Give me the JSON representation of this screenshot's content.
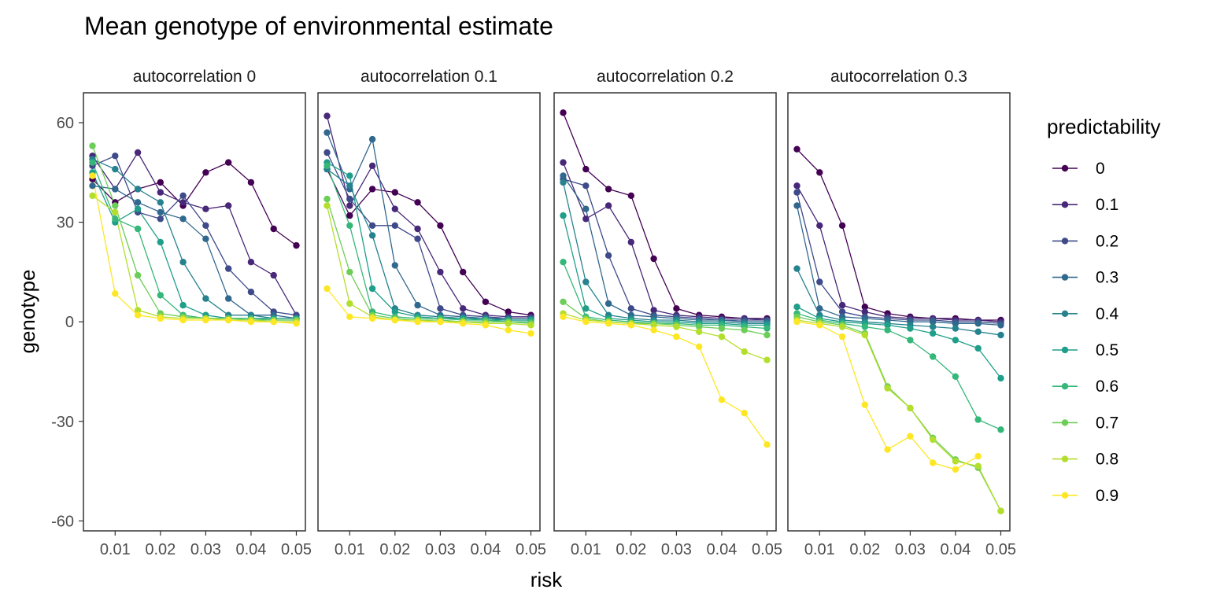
{
  "chart_data": {
    "type": "line",
    "title": "Mean genotype of environmental estimate",
    "xlabel": "risk",
    "ylabel": "genotype",
    "x": [
      0.005,
      0.01,
      0.015,
      0.02,
      0.025,
      0.03,
      0.035,
      0.04,
      0.045,
      0.05
    ],
    "x_ticks": [
      0.01,
      0.02,
      0.03,
      0.04,
      0.05
    ],
    "x_tick_labels": [
      "0.01",
      "0.02",
      "0.03",
      "0.04",
      "0.05"
    ],
    "xlim": [
      0.003,
      0.052
    ],
    "ylim": [
      -63,
      69
    ],
    "y_ticks": [
      60,
      30,
      0,
      -30,
      -60
    ],
    "y_tick_labels": [
      "60",
      "30",
      "0",
      "-30",
      "-60"
    ],
    "grid": false,
    "legend": {
      "title": "predictability",
      "position": "right",
      "labels": [
        "0",
        "0.1",
        "0.2",
        "0.3",
        "0.4",
        "0.5",
        "0.6",
        "0.7",
        "0.8",
        "0.9"
      ]
    },
    "series_colors": [
      "#440154",
      "#482878",
      "#3E4A89",
      "#31688E",
      "#26828E",
      "#1F9E89",
      "#35B779",
      "#6DCD59",
      "#B4DE2C",
      "#FDE725"
    ],
    "panels": [
      {
        "label": "autocorrelation 0",
        "series": [
          {
            "name": "0",
            "values": [
              43,
              36,
              40,
              42,
              35,
              45,
              48,
              42,
              28,
              23
            ]
          },
          {
            "name": "0.1",
            "values": [
              50,
              40,
              51,
              39,
              36,
              34,
              35,
              18,
              14,
              2
            ]
          },
          {
            "name": "0.2",
            "values": [
              47,
              50,
              33,
              31,
              38,
              29,
              16,
              9,
              3,
              2
            ]
          },
          {
            "name": "0.3",
            "values": [
              41,
              40,
              36,
              33,
              31,
              25,
              7,
              2,
              2,
              1
            ]
          },
          {
            "name": "0.4",
            "values": [
              49,
              46,
              40,
              36,
              18,
              7,
              2,
              2,
              1,
              1
            ]
          },
          {
            "name": "0.5",
            "values": [
              45,
              30,
              34,
              24,
              5,
              2,
              1,
              1,
              1,
              1
            ]
          },
          {
            "name": "0.6",
            "values": [
              48,
              31,
              28,
              8,
              2,
              1,
              1,
              1,
              0.5,
              0.5
            ]
          },
          {
            "name": "0.7",
            "values": [
              53,
              35,
              14,
              2.5,
              1.5,
              1,
              1,
              0.5,
              0.5,
              0.5
            ]
          },
          {
            "name": "0.8",
            "values": [
              38,
              33,
              3.5,
              1.5,
              1,
              1,
              0.5,
              0.5,
              0,
              0
            ]
          },
          {
            "name": "0.9",
            "values": [
              44,
              8.5,
              2,
              1,
              0.5,
              0.5,
              0.5,
              0,
              0,
              -0.5
            ]
          }
        ]
      },
      {
        "label": "autocorrelation 0.1",
        "series": [
          {
            "name": "0",
            "values": [
              46,
              32,
              40,
              39,
              36,
              29,
              15,
              6,
              3,
              2
            ]
          },
          {
            "name": "0.1",
            "values": [
              62,
              35,
              47,
              34,
              28,
              15,
              4,
              2,
              1.5,
              1.5
            ]
          },
          {
            "name": "0.2",
            "values": [
              51,
              37,
              29,
              29,
              25,
              4,
              2,
              1.5,
              1,
              1
            ]
          },
          {
            "name": "0.3",
            "values": [
              57,
              40,
              55,
              17,
              5,
              2,
              1.5,
              1,
              1,
              1
            ]
          },
          {
            "name": "0.4",
            "values": [
              46,
              41,
              26,
              4,
              2,
              1.5,
              1,
              1,
              0.5,
              0.5
            ]
          },
          {
            "name": "0.5",
            "values": [
              48,
              44,
              10,
              3,
              1.5,
              1,
              1,
              0.5,
              0.5,
              0.5
            ]
          },
          {
            "name": "0.6",
            "values": [
              47,
              29,
              3,
              1.5,
              1,
              1,
              0.5,
              0.5,
              0,
              0
            ]
          },
          {
            "name": "0.7",
            "values": [
              37,
              15,
              2,
              1,
              0.5,
              0.5,
              0,
              0,
              0,
              -0.5
            ]
          },
          {
            "name": "0.8",
            "values": [
              35,
              5.5,
              1.5,
              0.5,
              0.5,
              0,
              0,
              -0.5,
              -0.5,
              -1
            ]
          },
          {
            "name": "0.9",
            "values": [
              10,
              1.5,
              1,
              0.5,
              0,
              0,
              -0.5,
              -1,
              -2.5,
              -3.5
            ]
          }
        ]
      },
      {
        "label": "autocorrelation 0.2",
        "series": [
          {
            "name": "0",
            "values": [
              63,
              46,
              40,
              38,
              19,
              4,
              2,
              1.5,
              1,
              1
            ]
          },
          {
            "name": "0.1",
            "values": [
              48,
              31,
              35,
              24,
              3.5,
              2,
              1.5,
              1,
              1,
              0.5
            ]
          },
          {
            "name": "0.2",
            "values": [
              43,
              41,
              20,
              4,
              2,
              1.5,
              1,
              0.5,
              0.5,
              0.5
            ]
          },
          {
            "name": "0.3",
            "values": [
              44,
              34,
              5.5,
              2,
              1.5,
              1,
              0.5,
              0.5,
              0,
              0
            ]
          },
          {
            "name": "0.4",
            "values": [
              42,
              12,
              2,
              1,
              0.5,
              0.5,
              0,
              0,
              -0.5,
              -0.5
            ]
          },
          {
            "name": "0.5",
            "values": [
              32,
              4,
              1,
              0.5,
              0,
              0,
              -0.5,
              -0.5,
              -1,
              -1
            ]
          },
          {
            "name": "0.6",
            "values": [
              18,
              1.5,
              0.5,
              0,
              -0.5,
              -0.5,
              -1,
              -1,
              -1.5,
              -2
            ]
          },
          {
            "name": "0.7",
            "values": [
              6,
              1,
              0,
              -0.5,
              -0.5,
              -1,
              -1.5,
              -2,
              -2.5,
              -4
            ]
          },
          {
            "name": "0.8",
            "values": [
              2.5,
              0.5,
              0,
              -0.5,
              -1,
              -1.5,
              -3,
              -4.5,
              -9,
              -11.5
            ]
          },
          {
            "name": "0.9",
            "values": [
              1.5,
              0,
              -0.5,
              -1,
              -2.5,
              -4.5,
              -7.5,
              -23.5,
              -27.5,
              -37
            ]
          }
        ]
      },
      {
        "label": "autocorrelation 0.3",
        "series": [
          {
            "name": "0",
            "values": [
              52,
              45,
              29,
              4.5,
              2.5,
              1.5,
              1,
              1,
              0.5,
              0.5
            ]
          },
          {
            "name": "0.1",
            "values": [
              41,
              29,
              5,
              3,
              1.5,
              1,
              1,
              0.5,
              0.5,
              0
            ]
          },
          {
            "name": "0.2",
            "values": [
              39,
              12,
              3,
              1.5,
              1,
              0.5,
              0.5,
              0,
              0,
              -0.5
            ]
          },
          {
            "name": "0.3",
            "values": [
              35,
              4,
              1.5,
              1,
              0.5,
              0,
              0,
              -0.5,
              -0.5,
              -1
            ]
          },
          {
            "name": "0.4",
            "values": [
              16,
              2,
              0.5,
              0,
              -0.5,
              -1,
              -1.5,
              -2,
              -3,
              -4
            ]
          },
          {
            "name": "0.5",
            "values": [
              4.5,
              1,
              0,
              -0.5,
              -1,
              -2,
              -3.5,
              -5.5,
              -8,
              -17
            ]
          },
          {
            "name": "0.6",
            "values": [
              2.5,
              0.5,
              -0.5,
              -1.5,
              -2.5,
              -5.5,
              -10.5,
              -16.5,
              -29.5,
              -32.5
            ]
          },
          {
            "name": "0.7",
            "values": [
              1.5,
              0,
              -1,
              -3.5,
              -19.5,
              -26,
              -35,
              -41.5,
              -44,
              -57
            ]
          },
          {
            "name": "0.8",
            "values": [
              0.5,
              -0.5,
              -1.5,
              -4,
              -20,
              -26,
              -35.5,
              -42,
              -43.5,
              -57
            ]
          },
          {
            "name": "0.9",
            "values": [
              0,
              -1,
              -4.5,
              -25,
              -38.5,
              -34.5,
              -42.5,
              -44.5,
              -40.5,
              null
            ]
          }
        ]
      }
    ]
  }
}
